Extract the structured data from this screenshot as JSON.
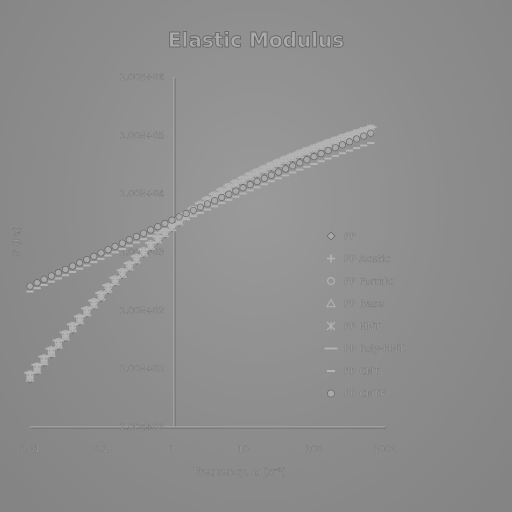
{
  "chart_data": {
    "type": "scatter",
    "title": "Elastic Modulus",
    "xlabel": "Frequency, ω (s⁻¹)",
    "ylabel": "G' (Pa)",
    "x_scale": "log",
    "y_scale": "log",
    "xlim": [
      0.01,
      1000
    ],
    "ylim": [
      1,
      1000000
    ],
    "x_ticks": [
      0.01,
      0.1,
      1,
      10,
      100,
      1000
    ],
    "x_tick_labels": [
      "0.01",
      "0.1",
      "1",
      "10",
      "100",
      "1000"
    ],
    "y_ticks": [
      1,
      10,
      100,
      1000,
      10000,
      100000,
      1000000
    ],
    "y_tick_labels": [
      "1.00E+00",
      "1.00E+01",
      "1.00E+02",
      "1.00E+03",
      "1.00E+04",
      "1.00E+05",
      "1.00E+06"
    ],
    "grid": false,
    "legend_position": "right",
    "x": [
      0.01,
      0.0126,
      0.0158,
      0.02,
      0.0251,
      0.0316,
      0.0398,
      0.0501,
      0.0631,
      0.0794,
      0.1,
      0.126,
      0.158,
      0.2,
      0.251,
      0.316,
      0.398,
      0.501,
      0.631,
      0.794,
      1,
      1.26,
      1.58,
      2,
      2.51,
      3.16,
      3.98,
      5.01,
      6.31,
      7.94,
      10,
      12.6,
      15.8,
      20,
      25.1,
      31.6,
      39.8,
      50.1,
      63.1,
      79.4,
      100,
      126,
      158,
      200,
      251,
      316,
      398,
      501,
      631
    ],
    "series": [
      {
        "name": "PP",
        "marker": "diamond",
        "values": [
          6.5,
          9.0,
          12.6,
          17.5,
          24.3,
          33.6,
          46.4,
          63.9,
          87.7,
          120,
          163,
          222,
          300,
          403,
          537,
          710,
          930,
          1210,
          1560,
          2000,
          2530,
          3180,
          3960,
          4880,
          5960,
          7210,
          8640,
          10270,
          12110,
          14170,
          16470,
          19030,
          21860,
          24980,
          28420,
          32190,
          36330,
          40860,
          45810,
          51210,
          57080,
          63460,
          70370,
          77840,
          85890,
          94560,
          103900,
          113800,
          124400
        ]
      },
      {
        "name": "PP Acetic",
        "marker": "plus",
        "values": [
          7.3,
          10.1,
          13.9,
          19.2,
          26.6,
          36.7,
          50.5,
          69.3,
          94.9,
          130,
          176,
          238,
          321,
          430,
          572,
          755,
          988,
          1280,
          1650,
          2110,
          2670,
          3340,
          4150,
          5110,
          6230,
          7530,
          9020,
          10710,
          12620,
          14760,
          17130,
          19770,
          22680,
          25890,
          29420,
          33290,
          37530,
          42170,
          47230,
          52740,
          58730,
          65240,
          72270,
          79880,
          88070,
          96880,
          106400,
          116500,
          127300
        ]
      },
      {
        "name": "PP Formic",
        "marker": "circle",
        "values": [
          8.1,
          11.1,
          15.3,
          21.1,
          29.1,
          40.0,
          55.0,
          75.3,
          103,
          141,
          191,
          258,
          347,
          465,
          617,
          813,
          1060,
          1380,
          1770,
          2250,
          2840,
          3550,
          4400,
          5400,
          6580,
          7940,
          9500,
          11270,
          13270,
          15500,
          17980,
          20740,
          23780,
          27130,
          30810,
          34850,
          39270,
          44100,
          49370,
          55110,
          61350,
          68120,
          75440,
          83350,
          91870,
          101000,
          110900,
          121400,
          132600
        ]
      },
      {
        "name": "PP Base",
        "marker": "triangle",
        "values": [
          6.9,
          9.5,
          13.2,
          18.3,
          25.3,
          35.0,
          48.2,
          66.3,
          90.9,
          124,
          169,
          229,
          310,
          416,
          554,
          732,
          959,
          1250,
          1610,
          2060,
          2600,
          3260,
          4060,
          5000,
          6100,
          7380,
          8840,
          10510,
          12390,
          14500,
          16850,
          19470,
          22370,
          25560,
          29070,
          32920,
          37140,
          41750,
          46790,
          52270,
          58240,
          64710,
          71710,
          79270,
          87420,
          96190,
          105600,
          115700,
          126400
        ]
      },
      {
        "name": "PP HNT",
        "marker": "asterisk",
        "values": [
          7.7,
          10.6,
          14.6,
          20.1,
          27.7,
          38.1,
          52.4,
          71.9,
          98.4,
          134,
          182,
          246,
          331,
          444,
          590,
          777,
          1020,
          1320,
          1700,
          2170,
          2740,
          3430,
          4260,
          5240,
          6390,
          7720,
          9240,
          10980,
          12950,
          15140,
          17580,
          20290,
          23280,
          26580,
          30200,
          34180,
          38530,
          43290,
          48480,
          54140,
          60290,
          66970,
          74190,
          82000,
          90410,
          99470,
          109200,
          119600,
          130700
        ]
      },
      {
        "name": "PP Poly-HNT",
        "marker": "bar",
        "values": [
          8.5,
          11.7,
          16.1,
          22.1,
          30.5,
          41.9,
          57.5,
          78.7,
          108,
          147,
          199,
          269,
          361,
          483,
          641,
          844,
          1100,
          1430,
          1830,
          2330,
          2940,
          3680,
          4560,
          5600,
          6820,
          8230,
          9850,
          11690,
          13760,
          16080,
          18660,
          21520,
          24680,
          28160,
          31980,
          36170,
          40760,
          45770,
          51240,
          57200,
          63680,
          70710,
          78300,
          86510,
          95360,
          104800,
          115000,
          126000,
          137600
        ]
      },
      {
        "name": "PP CNT",
        "marker": "dash",
        "values": [
          210,
          240,
          272,
          310,
          352,
          400,
          455,
          517,
          588,
          670,
          762,
          868,
          988,
          1125,
          1280,
          1460,
          1660,
          1890,
          2150,
          2450,
          2790,
          3180,
          3620,
          4120,
          4690,
          5340,
          6070,
          6900,
          7830,
          8880,
          10060,
          11380,
          12850,
          14490,
          16320,
          18350,
          20600,
          23090,
          25850,
          28890,
          32250,
          35940,
          40000,
          44460,
          49350,
          54710,
          60560,
          66950,
          73900
        ]
      },
      {
        "name": "PP CNTF",
        "marker": "dot",
        "values": [
          260,
          298,
          340,
          388,
          442,
          503,
          573,
          652,
          742,
          845,
          962,
          1095,
          1247,
          1420,
          1617,
          1841,
          2096,
          2386,
          2715,
          3090,
          3517,
          4001,
          4551,
          5175,
          5883,
          6685,
          7594,
          8622,
          9785,
          11100,
          12590,
          14270,
          16170,
          18310,
          20730,
          23440,
          26500,
          29940,
          33800,
          38130,
          42990,
          48430,
          54500,
          61300,
          68890,
          77360,
          86790,
          97300,
          108900
        ]
      }
    ]
  }
}
